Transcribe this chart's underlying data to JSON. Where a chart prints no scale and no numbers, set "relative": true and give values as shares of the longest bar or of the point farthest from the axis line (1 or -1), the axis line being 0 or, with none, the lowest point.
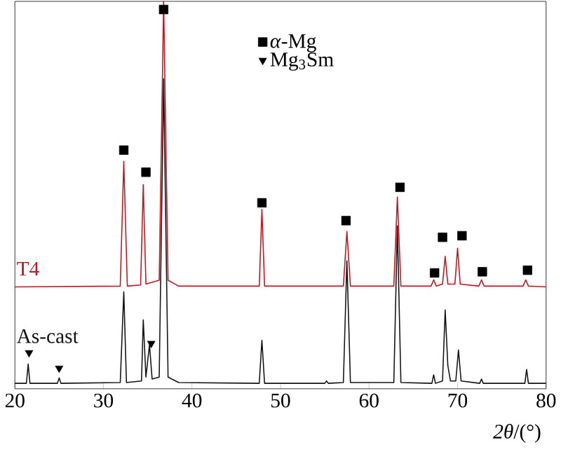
{
  "chart_data": {
    "type": "line",
    "xlabel": "*2θ*/(°)",
    "relative": true,
    "xlim": [
      20,
      80
    ],
    "xticks": [
      20,
      30,
      40,
      50,
      60,
      70,
      80
    ],
    "legend": "top",
    "series": [
      {
        "name": "T4",
        "type": "line",
        "color": "#c8141e",
        "x": [
          20,
          31.9,
          32.3,
          32.7,
          34.2,
          34.5,
          34.8,
          36.3,
          36.8,
          37.3,
          38.5,
          47.6,
          47.9,
          48.2,
          57.1,
          57.5,
          57.9,
          62.8,
          63.2,
          63.6,
          67.0,
          67.3,
          67.6,
          68.3,
          68.6,
          68.9,
          69.7,
          70.0,
          70.3,
          72.4,
          72.7,
          73.0,
          77.4,
          77.7,
          78.0,
          80
        ],
        "values": [
          0.263,
          0.265,
          0.587,
          0.265,
          0.268,
          0.527,
          0.27,
          0.28,
          1,
          0.28,
          0.265,
          0.265,
          0.463,
          0.265,
          0.265,
          0.406,
          0.265,
          0.265,
          0.495,
          0.265,
          0.265,
          0.281,
          0.265,
          0.27,
          0.342,
          0.27,
          0.27,
          0.363,
          0.27,
          0.265,
          0.281,
          0.265,
          0.265,
          0.281,
          0.265,
          0.263
        ]
      },
      {
        "name": "As-cast",
        "type": "line",
        "color": "#141414",
        "x": [
          20,
          21.3,
          21.5,
          21.7,
          24.8,
          25.0,
          25.2,
          31.9,
          32.3,
          32.6,
          34.3,
          34.5,
          34.8,
          35.2,
          35.5,
          36.3,
          36.8,
          37.3,
          38.5,
          47.6,
          47.9,
          48.2,
          55,
          55.2,
          55.4,
          57.1,
          57.5,
          57.9,
          62.8,
          63.2,
          63.6,
          67.1,
          67.3,
          67.5,
          68.3,
          68.6,
          68.9,
          69.2,
          69.8,
          70.1,
          70.4,
          72.5,
          72.7,
          72.9,
          77.6,
          77.8,
          78.0,
          80
        ],
        "values": [
          0.014,
          0.014,
          0.064,
          0.014,
          0.014,
          0.028,
          0.014,
          0.016,
          0.25,
          0.016,
          0.02,
          0.178,
          0.03,
          0.114,
          0.025,
          0.03,
          0.8,
          0.03,
          0.016,
          0.014,
          0.125,
          0.014,
          0.014,
          0.02,
          0.014,
          0.016,
          0.33,
          0.016,
          0.016,
          0.42,
          0.016,
          0.014,
          0.036,
          0.014,
          0.02,
          0.203,
          0.06,
          0.02,
          0.02,
          0.1,
          0.02,
          0.014,
          0.025,
          0.014,
          0.014,
          0.05,
          0.014,
          0.014
        ]
      },
      {
        "name": "*α*-Mg",
        "type": "scatter",
        "marker": "square",
        "color": "#000000",
        "x": [
          32.3,
          34.8,
          36.8,
          47.9,
          57.4,
          63.5,
          67.4,
          68.3,
          70.5,
          72.8,
          77.9
        ],
        "values": [
          0.616,
          0.559,
          0.979,
          0.48,
          0.434,
          0.52,
          0.299,
          0.391,
          0.395,
          0.302,
          0.306
        ]
      },
      {
        "name": "Mg$_{3}$Sm",
        "type": "scatter",
        "marker": "triangle",
        "color": "#000000",
        "x": [
          21.6,
          25.0,
          35.4
        ],
        "values": [
          0.093,
          0.053,
          0.117
        ]
      }
    ]
  }
}
